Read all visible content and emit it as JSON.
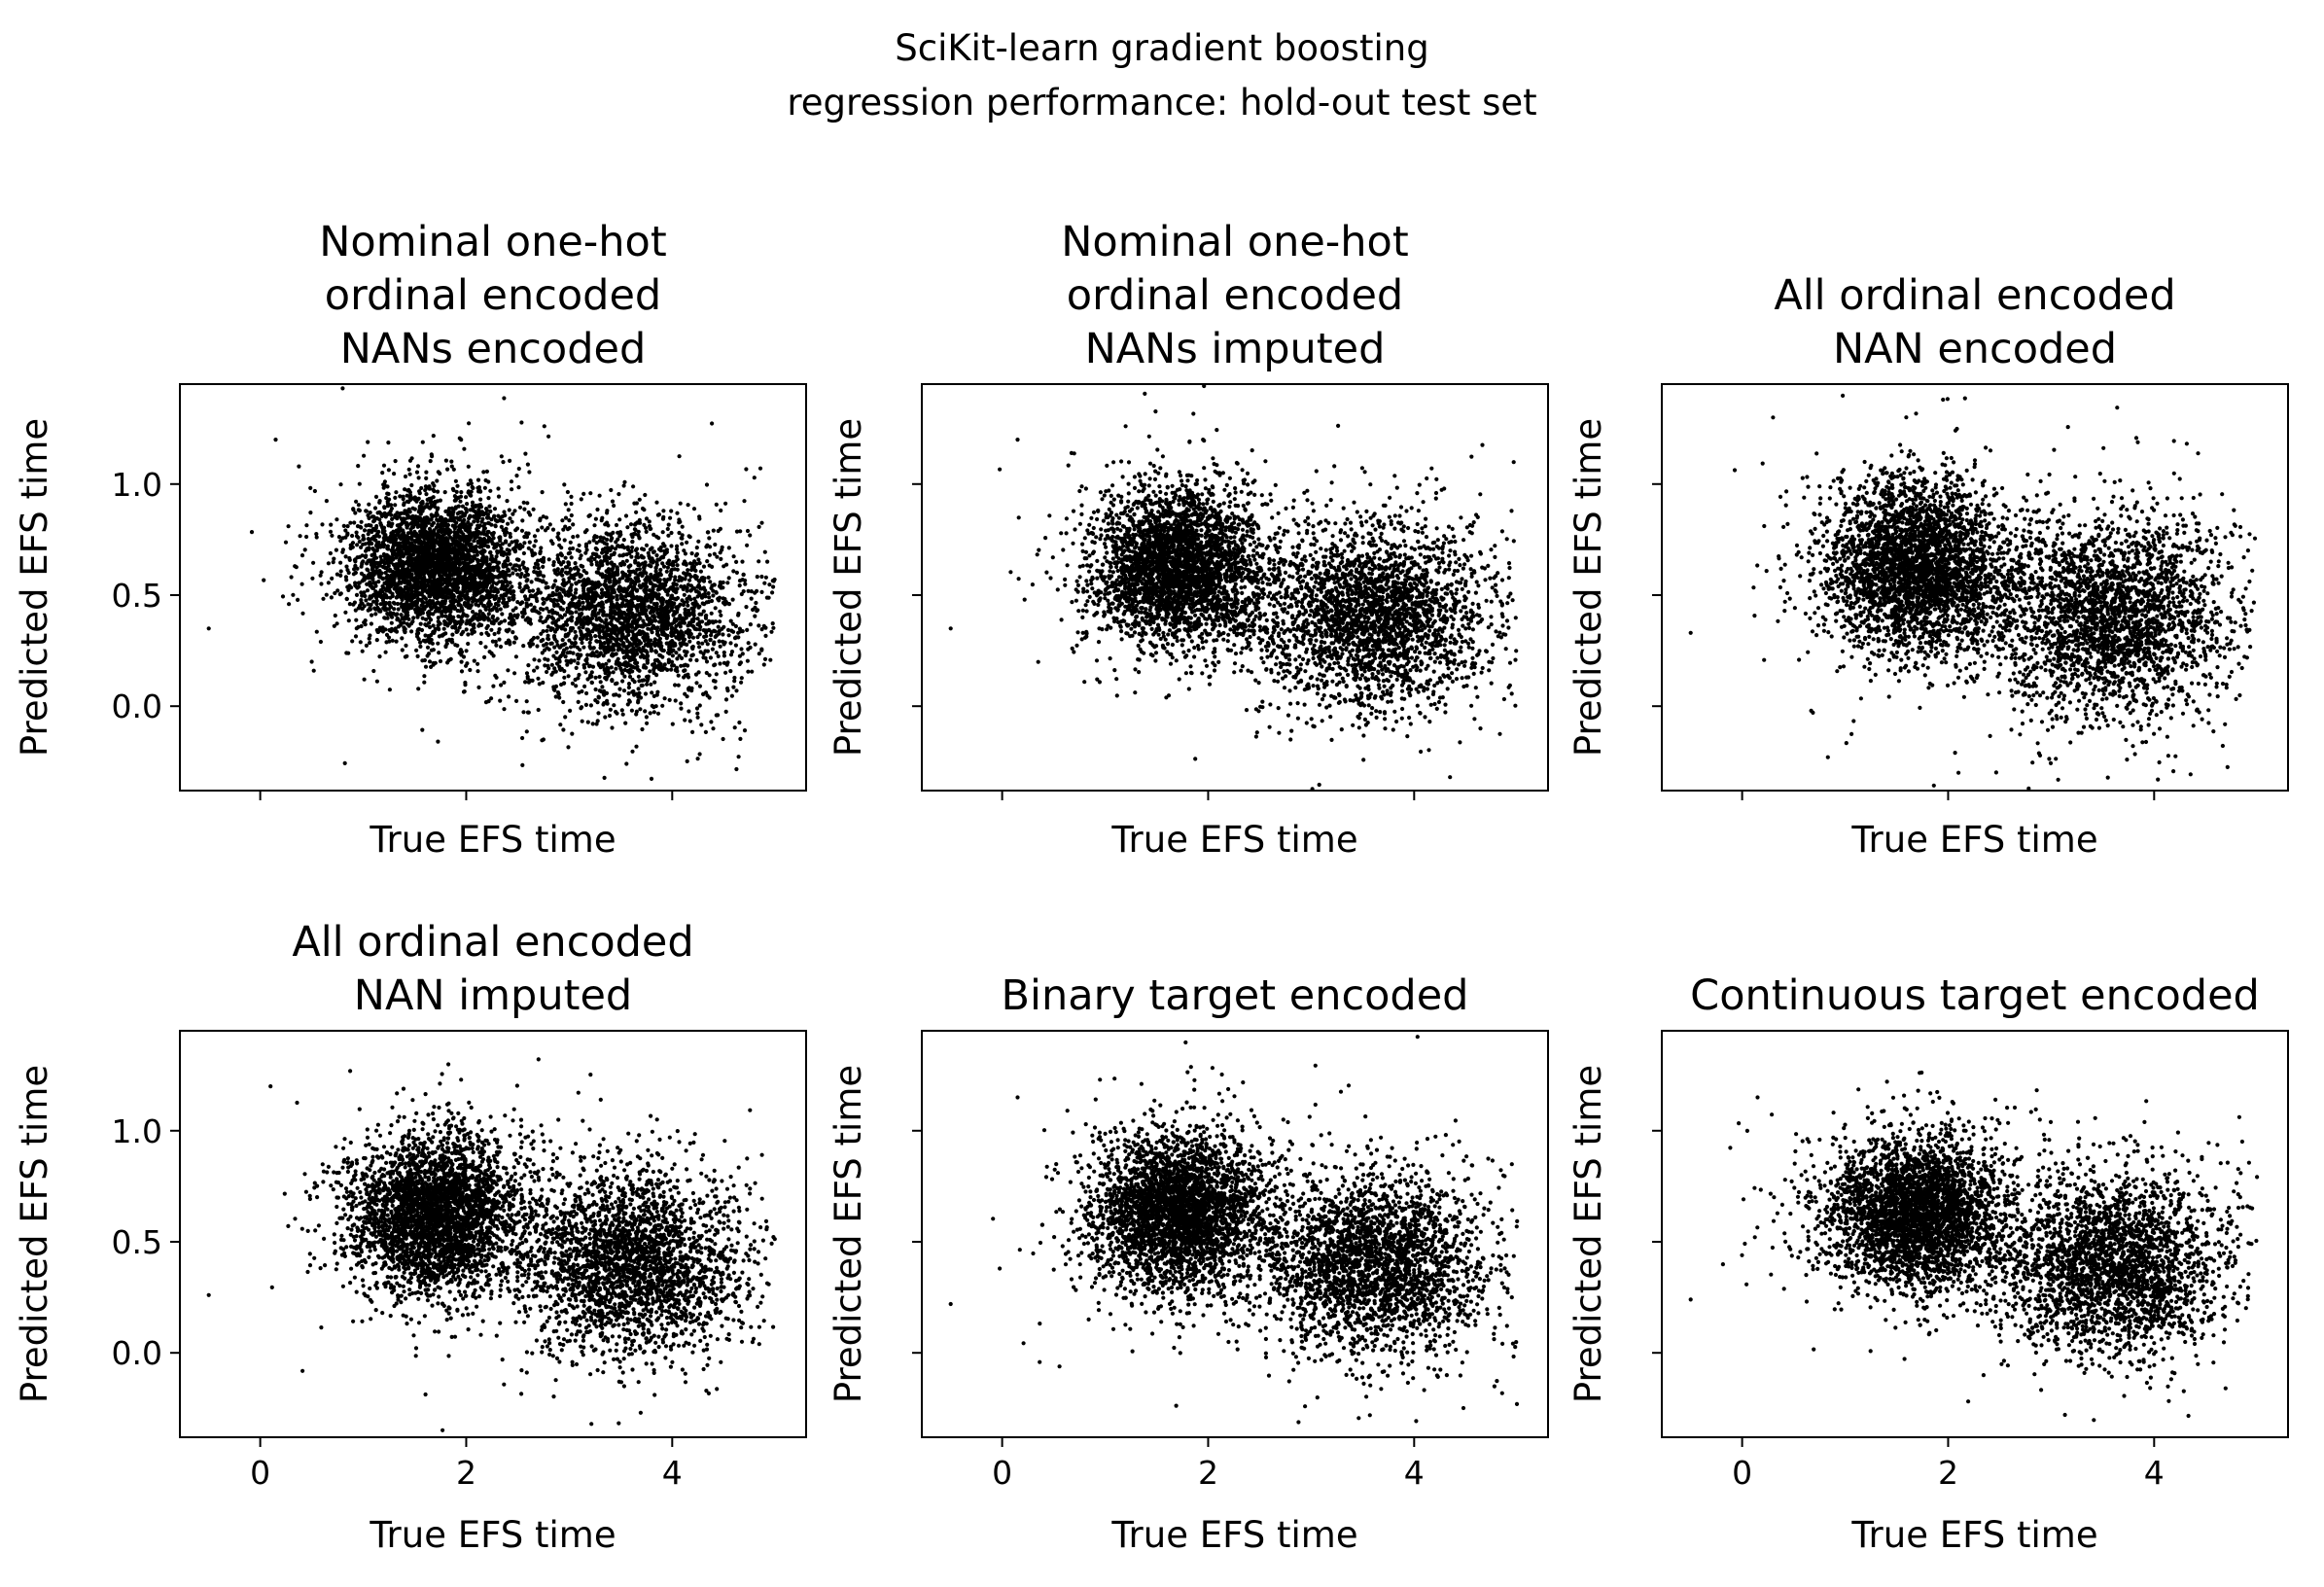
{
  "figure": {
    "suptitle": [
      "SciKit-learn gradient boosting",
      "regression performance: hold-out test set"
    ]
  },
  "style": {
    "point_color": "#000000",
    "axes_color": "#000000",
    "background": "#ffffff"
  },
  "chart_data": [
    {
      "type": "scatter",
      "title": [
        "Nominal one-hot",
        "ordinal encoded",
        "NANs encoded"
      ],
      "xlabel": "True EFS time",
      "ylabel": "Predicted EFS time",
      "xlim": [
        -0.78,
        5.3
      ],
      "ylim": [
        -0.38,
        1.45
      ],
      "xticks": [
        0,
        2,
        4
      ],
      "yticks": [
        0.0,
        0.5,
        1.0
      ],
      "xtick_labels_shown": false,
      "ytick_labels_shown": true,
      "series": [
        {
          "center": [
            1.7,
            0.63
          ],
          "spread": [
            0.42,
            0.17
          ],
          "n": 3200
        },
        {
          "center": [
            3.6,
            0.42
          ],
          "spread": [
            0.55,
            0.2
          ],
          "n": 2600
        }
      ],
      "sample_points": [
        [
          -0.5,
          0.35
        ],
        [
          0.15,
          1.2
        ],
        [
          0.5,
          0.2
        ],
        [
          0.52,
          0.16
        ],
        [
          2.75,
          -0.15
        ],
        [
          1.95,
          1.2
        ]
      ]
    },
    {
      "type": "scatter",
      "title": [
        "Nominal one-hot",
        "ordinal encoded",
        "NANs imputed"
      ],
      "xlabel": "True EFS time",
      "ylabel": "Predicted EFS time",
      "xlim": [
        -0.78,
        5.3
      ],
      "ylim": [
        -0.38,
        1.45
      ],
      "xticks": [
        0,
        2,
        4
      ],
      "yticks": [
        0.0,
        0.5,
        1.0
      ],
      "xtick_labels_shown": false,
      "ytick_labels_shown": false,
      "series": [
        {
          "center": [
            1.7,
            0.62
          ],
          "spread": [
            0.42,
            0.17
          ],
          "n": 3200
        },
        {
          "center": [
            3.6,
            0.41
          ],
          "spread": [
            0.55,
            0.2
          ],
          "n": 2600
        }
      ],
      "sample_points": [
        [
          -0.5,
          0.35
        ],
        [
          0.15,
          1.2
        ],
        [
          1.95,
          1.2
        ],
        [
          2.8,
          -0.15
        ]
      ]
    },
    {
      "type": "scatter",
      "title": [
        "All ordinal encoded",
        "NAN encoded"
      ],
      "xlabel": "True EFS time",
      "ylabel": "Predicted EFS time",
      "xlim": [
        -0.78,
        5.3
      ],
      "ylim": [
        -0.38,
        1.45
      ],
      "xticks": [
        0,
        2,
        4
      ],
      "yticks": [
        0.0,
        0.5,
        1.0
      ],
      "xtick_labels_shown": false,
      "ytick_labels_shown": false,
      "series": [
        {
          "center": [
            1.7,
            0.63
          ],
          "spread": [
            0.45,
            0.19
          ],
          "n": 3200
        },
        {
          "center": [
            3.6,
            0.4
          ],
          "spread": [
            0.58,
            0.22
          ],
          "n": 2600
        }
      ],
      "sample_points": [
        [
          -0.5,
          0.33
        ],
        [
          0.3,
          1.3
        ],
        [
          1.95,
          1.38
        ],
        [
          2.1,
          -0.3
        ]
      ]
    },
    {
      "type": "scatter",
      "title": [
        "All ordinal encoded",
        "NAN imputed"
      ],
      "xlabel": "True EFS time",
      "ylabel": "Predicted EFS time",
      "xlim": [
        -0.78,
        5.3
      ],
      "ylim": [
        -0.38,
        1.45
      ],
      "xticks": [
        0,
        2,
        4
      ],
      "yticks": [
        0.0,
        0.5,
        1.0
      ],
      "xtick_labels_shown": true,
      "ytick_labels_shown": true,
      "series": [
        {
          "center": [
            1.7,
            0.63
          ],
          "spread": [
            0.42,
            0.17
          ],
          "n": 3200
        },
        {
          "center": [
            3.6,
            0.4
          ],
          "spread": [
            0.55,
            0.2
          ],
          "n": 2600
        }
      ],
      "sample_points": [
        [
          -0.5,
          0.26
        ],
        [
          0.1,
          1.2
        ],
        [
          1.95,
          1.23
        ]
      ]
    },
    {
      "type": "scatter",
      "title": [
        "Binary target encoded"
      ],
      "xlabel": "True EFS time",
      "ylabel": "Predicted EFS time",
      "xlim": [
        -0.78,
        5.3
      ],
      "ylim": [
        -0.38,
        1.45
      ],
      "xticks": [
        0,
        2,
        4
      ],
      "yticks": [
        0.0,
        0.5,
        1.0
      ],
      "xtick_labels_shown": true,
      "ytick_labels_shown": false,
      "series": [
        {
          "center": [
            1.7,
            0.63
          ],
          "spread": [
            0.42,
            0.17
          ],
          "n": 3200
        },
        {
          "center": [
            3.6,
            0.4
          ],
          "spread": [
            0.55,
            0.2
          ],
          "n": 2600
        }
      ],
      "sample_points": [
        [
          -0.5,
          0.22
        ],
        [
          0.95,
          1.23
        ],
        [
          0.15,
          1.15
        ]
      ]
    },
    {
      "type": "scatter",
      "title": [
        "Continuous target encoded"
      ],
      "xlabel": "True EFS time",
      "ylabel": "Predicted EFS time",
      "xlim": [
        -0.78,
        5.3
      ],
      "ylim": [
        -0.38,
        1.45
      ],
      "xticks": [
        0,
        2,
        4
      ],
      "yticks": [
        0.0,
        0.5,
        1.0
      ],
      "xtick_labels_shown": true,
      "ytick_labels_shown": false,
      "series": [
        {
          "center": [
            1.7,
            0.63
          ],
          "spread": [
            0.42,
            0.17
          ],
          "n": 3200
        },
        {
          "center": [
            3.6,
            0.4
          ],
          "spread": [
            0.55,
            0.2
          ],
          "n": 2600
        }
      ],
      "sample_points": [
        [
          -0.5,
          0.24
        ],
        [
          0.15,
          1.15
        ]
      ]
    }
  ]
}
